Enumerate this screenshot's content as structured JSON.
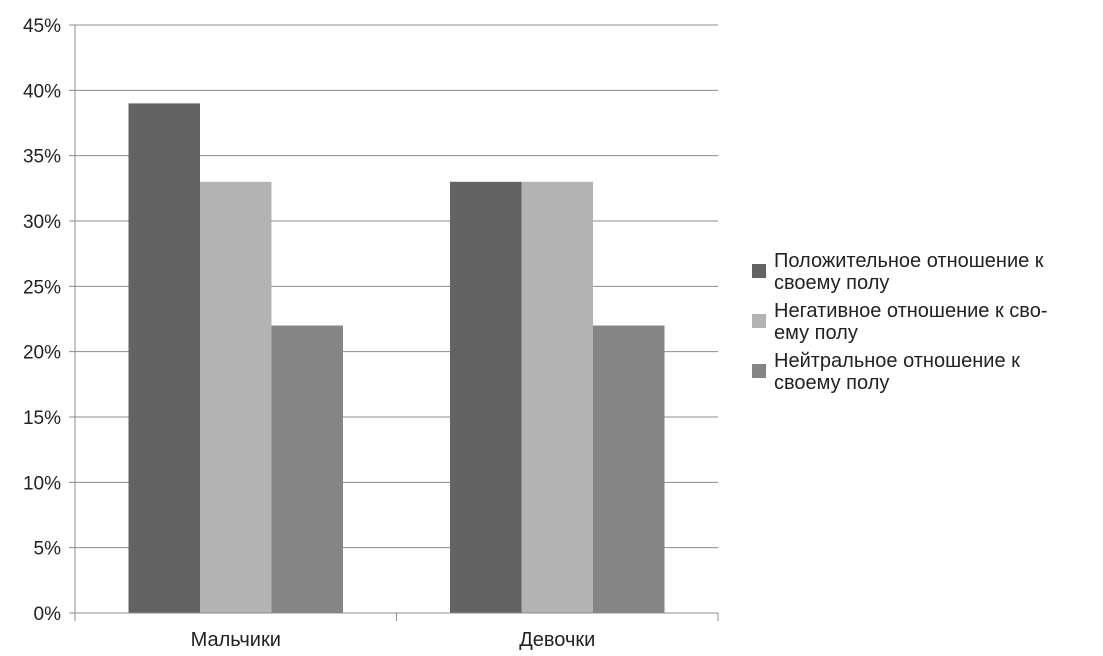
{
  "chart_data": {
    "type": "bar",
    "categories": [
      "Мальчики",
      "Девочки"
    ],
    "series": [
      {
        "name": "Положительное отношение к своему полу",
        "values": [
          39,
          33
        ],
        "color": "#636363"
      },
      {
        "name": "Негативное отношение к своему полу",
        "values": [
          33,
          33
        ],
        "color": "#b3b3b3"
      },
      {
        "name": "Нейтральное отношение к своему полу",
        "values": [
          22,
          22
        ],
        "color": "#858585"
      }
    ],
    "y_ticks": [
      "0%",
      "5%",
      "10%",
      "15%",
      "20%",
      "25%",
      "30%",
      "35%",
      "40%",
      "45%"
    ],
    "ylim": [
      0,
      45
    ],
    "y_unit": "%",
    "grid": true,
    "legend_position": "right",
    "title": "",
    "xlabel": "",
    "ylabel": ""
  },
  "legend": {
    "items": [
      {
        "label_line1": "Положительное отношение к",
        "label_line2": "своему полу"
      },
      {
        "label_line1": "Негативное отношение к сво-",
        "label_line2": "ему полу"
      },
      {
        "label_line1": "Нейтральное отношение к",
        "label_line2": "своему полу"
      }
    ]
  }
}
